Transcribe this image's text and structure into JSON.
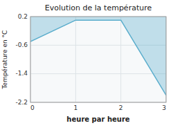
{
  "chart_data": {
    "type": "line",
    "title": "Evolution de la température",
    "xlabel": "heure par heure",
    "ylabel": "Température en °C",
    "x": [
      0,
      1,
      2,
      3
    ],
    "values": [
      -0.5,
      0.1,
      0.1,
      -2.0
    ],
    "color": "#5aadcc",
    "xlim": [
      0,
      3
    ],
    "ylim": [
      -2.2,
      0.2
    ],
    "xticks": [
      0,
      1,
      2,
      3
    ],
    "yticks": [
      0.2,
      -0.6,
      -1.4,
      -2.2
    ],
    "grid": true
  }
}
